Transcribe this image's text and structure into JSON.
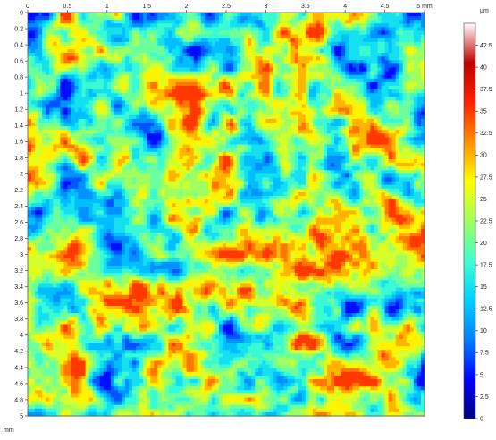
{
  "chart_data": {
    "type": "heatmap",
    "title": "",
    "x": {
      "unit": "mm",
      "range": [
        0,
        5
      ],
      "ticks": [
        0,
        0.5,
        1,
        1.5,
        2,
        2.5,
        3,
        3.5,
        4,
        4.5,
        5
      ],
      "tick_labels": [
        "0",
        "0.5",
        "1",
        "1.5",
        "2",
        "2.5",
        "3",
        "3.5",
        "4",
        "4.5",
        "5 mm"
      ]
    },
    "y": {
      "unit": "mm",
      "range": [
        0,
        5
      ],
      "ticks": [
        0,
        0.2,
        0.4,
        0.6,
        0.8,
        1,
        1.2,
        1.4,
        1.6,
        1.8,
        2,
        2.2,
        2.4,
        2.6,
        2.8,
        3,
        3.2,
        3.4,
        3.6,
        3.8,
        4,
        4.2,
        4.4,
        4.6,
        4.8,
        5
      ],
      "tick_labels": [
        "0",
        "0.2",
        "0.4",
        "0.6",
        "0.8",
        "1",
        "1.2",
        "1.4",
        "1.6",
        "1.8",
        "2",
        "2.2",
        "2.4",
        "2.6",
        "2.8",
        "3",
        "3.2",
        "3.4",
        "3.6",
        "3.8",
        "4",
        "4.2",
        "4.4",
        "4.6",
        "4.8",
        "5"
      ],
      "bottom_unit_label": "mm"
    },
    "colorbar": {
      "unit": "µm",
      "range": [
        0,
        45
      ],
      "ticks": [
        0,
        2.5,
        5,
        7.5,
        10,
        12.5,
        15,
        17.5,
        20,
        22.5,
        25,
        27.5,
        30,
        32.5,
        35,
        37.5,
        40,
        42.5
      ],
      "tick_labels": [
        "0",
        "2.5",
        "5",
        "7.5",
        "10",
        "12.5",
        "15",
        "17.5",
        "20",
        "22.5",
        "25",
        "27.5",
        "30",
        "32.5",
        "35",
        "37.5",
        "40",
        "42.5"
      ],
      "colormap": [
        "#000080",
        "#0000ff",
        "#0080ff",
        "#00d0ff",
        "#40ffd0",
        "#a0ff60",
        "#ffff00",
        "#ff9000",
        "#ff2000",
        "#c00000",
        "#ffffff"
      ]
    },
    "surface": {
      "description_level_range": [
        5,
        35
      ],
      "grid": "off",
      "legend_position": "right"
    }
  }
}
